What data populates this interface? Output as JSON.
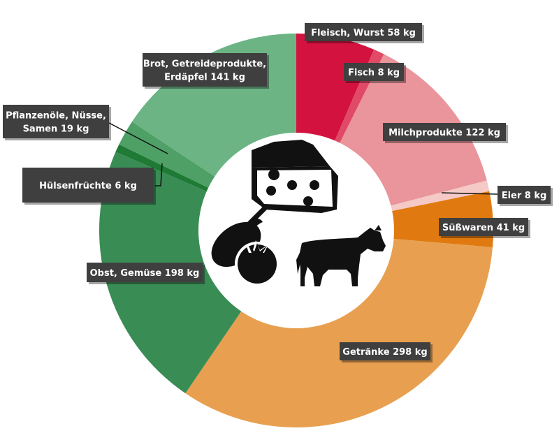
{
  "chart_data": {
    "type": "pie",
    "unit": "kg",
    "categories": [
      "Fleisch, Wurst",
      "Fisch",
      "Milchprodukte",
      "Eier",
      "Süßwaren",
      "Getränke",
      "Obst, Gemüse",
      "Hülsenfrüchte",
      "Pflanzenöle, Nüsse, Samen",
      "Brot, Getreideprodukte, Erdäpfel"
    ],
    "values": [
      58,
      8,
      122,
      8,
      41,
      298,
      198,
      6,
      19,
      141
    ],
    "colors": [
      "#d4123f",
      "#e14a66",
      "#e9959b",
      "#f5c9c6",
      "#e07a10",
      "#e8a050",
      "#3a8c55",
      "#1e7a34",
      "#4ea066",
      "#6cb484"
    ],
    "labels": [
      {
        "lines": [
          "Fleisch, Wurst  58 kg"
        ]
      },
      {
        "lines": [
          "Fisch  8 kg"
        ]
      },
      {
        "lines": [
          "Milchprodukte  122 kg"
        ]
      },
      {
        "lines": [
          "Eier  8 kg"
        ]
      },
      {
        "lines": [
          "Süßwaren  41 kg"
        ]
      },
      {
        "lines": [
          "Getränke  298 kg"
        ]
      },
      {
        "lines": [
          "Obst, Gemüse  198 kg"
        ]
      },
      {
        "lines": [
          "Hülsenfrüchte  6 kg"
        ]
      },
      {
        "lines": [
          "Pflanzenöle, Nüsse,",
          "Samen  19 kg"
        ]
      },
      {
        "lines": [
          "Brot, Getreideprodukte,",
          "Erdäpfel  141 kg"
        ]
      }
    ],
    "legend": "none",
    "center_icons": [
      "cheese-icon",
      "eggplant-icon",
      "tomato-icon",
      "cow-icon"
    ]
  }
}
